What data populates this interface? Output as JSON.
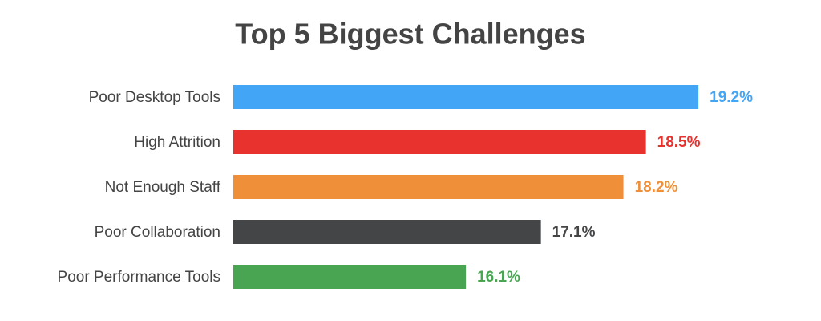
{
  "chart_data": {
    "type": "bar",
    "orientation": "horizontal",
    "title": "Top 5 Biggest Challenges",
    "categories": [
      "Poor Desktop Tools",
      "High Attrition",
      "Not Enough Staff",
      "Poor Collaboration",
      "Poor Performance Tools"
    ],
    "values": [
      19.2,
      18.5,
      18.2,
      17.1,
      16.1
    ],
    "value_labels": [
      "19.2%",
      "18.5%",
      "18.2%",
      "17.1%",
      "16.1%"
    ],
    "colors": [
      "#42a5f5",
      "#e8322e",
      "#f08f3a",
      "#444547",
      "#4aa552"
    ],
    "xlim": [
      13,
      20
    ]
  }
}
